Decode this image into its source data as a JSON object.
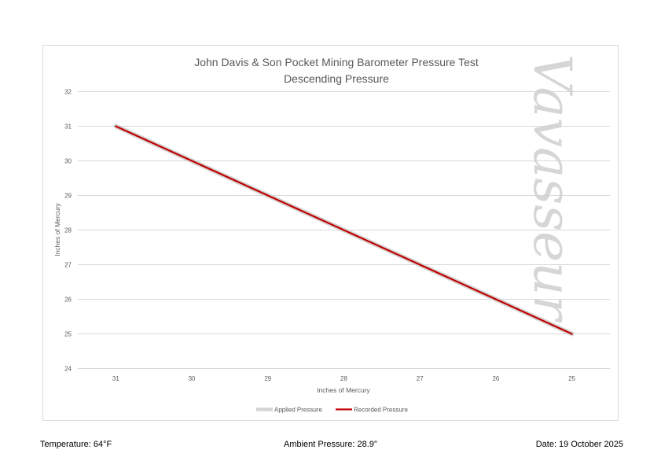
{
  "chart_data": {
    "type": "line",
    "title": "John Davis & Son Pocket Mining Barometer Pressure Test",
    "subtitle": "Descending Pressure",
    "xlabel": "Inches of Mercury",
    "ylabel": "Inches of Mercury",
    "categories": [
      "31",
      "30",
      "29",
      "28",
      "27",
      "26",
      "25"
    ],
    "ylim": [
      24,
      32
    ],
    "yticks": [
      "24",
      "25",
      "26",
      "27",
      "28",
      "29",
      "30",
      "31",
      "32"
    ],
    "grid": true,
    "legend_position": "bottom",
    "series": [
      {
        "name": "Applied Pressure",
        "color": "#d4d4d4",
        "values": [
          31,
          30,
          29,
          28,
          27,
          26,
          25
        ]
      },
      {
        "name": "Recorded Pressure",
        "color": "#c00000",
        "values": [
          31,
          30,
          29,
          28,
          27,
          26,
          25
        ]
      }
    ]
  },
  "watermark": "Vavasseur",
  "footer": {
    "temperature": "Temperature: 64°F",
    "ambient": "Ambient Pressure: 28.9”",
    "date": "Date: 19 October 2025"
  }
}
